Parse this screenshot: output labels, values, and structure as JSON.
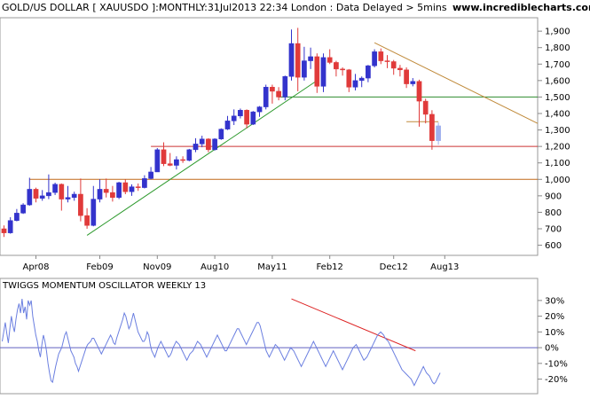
{
  "header": {
    "title": "GOLD/US DOLLAR [ XAUUSDO ]:MONTHLY:31Jul2013 22:34 London : Data Delayed > 5mins",
    "site": "www.incrediblecharts.com"
  },
  "oscillator": {
    "title": "TWIGGS MOMENTUM OSCILLATOR WEEKLY 13"
  },
  "colors": {
    "up": "#3333cc",
    "down": "#e03a3a",
    "current": "#9fb0ee",
    "osc_line": "#6b7fe0",
    "support": "#cc3333",
    "support_1000": "#c06a1a",
    "trend_up": "#2e9a2e",
    "line_1500": "#2e8b2e",
    "trend_down_price": "#c08a3a",
    "trend_down_osc": "#dd2222",
    "grid": "#bbbbbb",
    "zero_line": "#6060c0"
  },
  "chart_data": [
    {
      "type": "candlestick",
      "title": "GOLD/US DOLLAR [ XAUUSDO ]:MONTHLY:31Jul2013 22:34 London : Data Delayed > 5mins",
      "xlabel": "",
      "ylabel": "",
      "x_ticks": [
        "Apr08",
        "Feb09",
        "Nov09",
        "Aug10",
        "May11",
        "Feb12",
        "Dec12",
        "Aug13"
      ],
      "y_ticks": [
        "600",
        "700",
        "800",
        "900",
        "1,000",
        "1,100",
        "1,200",
        "1,300",
        "1,400",
        "1,500",
        "1,600",
        "1,700",
        "1,800",
        "1,900"
      ],
      "ylim": [
        560,
        1960
      ],
      "x_start": "Nov 2007",
      "candles": [
        {
          "m": "Nov07",
          "o": 700,
          "h": 720,
          "l": 650,
          "c": 675
        },
        {
          "m": "Dec07",
          "o": 675,
          "h": 770,
          "l": 670,
          "c": 750
        },
        {
          "m": "Jan08",
          "o": 750,
          "h": 820,
          "l": 745,
          "c": 795
        },
        {
          "m": "Feb08",
          "o": 795,
          "h": 855,
          "l": 790,
          "c": 845
        },
        {
          "m": "Mar08",
          "o": 845,
          "h": 1010,
          "l": 840,
          "c": 940
        },
        {
          "m": "Apr08",
          "o": 940,
          "h": 950,
          "l": 860,
          "c": 885
        },
        {
          "m": "May08",
          "o": 885,
          "h": 935,
          "l": 870,
          "c": 900
        },
        {
          "m": "Jun08",
          "o": 900,
          "h": 1030,
          "l": 880,
          "c": 920
        },
        {
          "m": "Jul08",
          "o": 920,
          "h": 980,
          "l": 905,
          "c": 970
        },
        {
          "m": "Aug08",
          "o": 970,
          "h": 975,
          "l": 810,
          "c": 880
        },
        {
          "m": "Sep08",
          "o": 880,
          "h": 960,
          "l": 860,
          "c": 890
        },
        {
          "m": "Oct08",
          "o": 890,
          "h": 925,
          "l": 870,
          "c": 910
        },
        {
          "m": "Nov08",
          "o": 910,
          "h": 1005,
          "l": 745,
          "c": 780
        },
        {
          "m": "Dec08",
          "o": 780,
          "h": 825,
          "l": 700,
          "c": 720
        },
        {
          "m": "Jan09",
          "o": 720,
          "h": 960,
          "l": 715,
          "c": 880
        },
        {
          "m": "Feb09",
          "o": 880,
          "h": 1000,
          "l": 860,
          "c": 940
        },
        {
          "m": "Mar09",
          "o": 940,
          "h": 1005,
          "l": 890,
          "c": 920
        },
        {
          "m": "Apr09",
          "o": 920,
          "h": 960,
          "l": 865,
          "c": 890
        },
        {
          "m": "May09",
          "o": 890,
          "h": 985,
          "l": 880,
          "c": 980
        },
        {
          "m": "Jun09",
          "o": 980,
          "h": 1000,
          "l": 910,
          "c": 925
        },
        {
          "m": "Jul09",
          "o": 925,
          "h": 970,
          "l": 900,
          "c": 955
        },
        {
          "m": "Aug09",
          "o": 955,
          "h": 975,
          "l": 930,
          "c": 950
        },
        {
          "m": "Sep09",
          "o": 950,
          "h": 1025,
          "l": 945,
          "c": 1005
        },
        {
          "m": "Oct09",
          "o": 1005,
          "h": 1075,
          "l": 1000,
          "c": 1045
        },
        {
          "m": "Nov09",
          "o": 1045,
          "h": 1190,
          "l": 1045,
          "c": 1180
        },
        {
          "m": "Dec09",
          "o": 1180,
          "h": 1225,
          "l": 1080,
          "c": 1095
        },
        {
          "m": "Jan10",
          "o": 1095,
          "h": 1160,
          "l": 1080,
          "c": 1085
        },
        {
          "m": "Feb10",
          "o": 1085,
          "h": 1140,
          "l": 1060,
          "c": 1120
        },
        {
          "m": "Mar10",
          "o": 1120,
          "h": 1140,
          "l": 1100,
          "c": 1115
        },
        {
          "m": "Apr10",
          "o": 1115,
          "h": 1185,
          "l": 1110,
          "c": 1180
        },
        {
          "m": "May10",
          "o": 1180,
          "h": 1250,
          "l": 1165,
          "c": 1215
        },
        {
          "m": "Jun10",
          "o": 1215,
          "h": 1265,
          "l": 1195,
          "c": 1245
        },
        {
          "m": "Jul10",
          "o": 1245,
          "h": 1250,
          "l": 1165,
          "c": 1180
        },
        {
          "m": "Aug10",
          "o": 1180,
          "h": 1250,
          "l": 1175,
          "c": 1245
        },
        {
          "m": "Sep10",
          "o": 1245,
          "h": 1310,
          "l": 1240,
          "c": 1305
        },
        {
          "m": "Oct10",
          "o": 1305,
          "h": 1385,
          "l": 1300,
          "c": 1355
        },
        {
          "m": "Nov10",
          "o": 1355,
          "h": 1425,
          "l": 1330,
          "c": 1385
        },
        {
          "m": "Dec10",
          "o": 1385,
          "h": 1430,
          "l": 1370,
          "c": 1420
        },
        {
          "m": "Jan11",
          "o": 1420,
          "h": 1425,
          "l": 1310,
          "c": 1335
        },
        {
          "m": "Feb11",
          "o": 1335,
          "h": 1415,
          "l": 1330,
          "c": 1410
        },
        {
          "m": "Mar11",
          "o": 1410,
          "h": 1445,
          "l": 1380,
          "c": 1440
        },
        {
          "m": "Apr11",
          "o": 1440,
          "h": 1575,
          "l": 1425,
          "c": 1560
        },
        {
          "m": "May11",
          "o": 1560,
          "h": 1575,
          "l": 1460,
          "c": 1535
        },
        {
          "m": "Jun11",
          "o": 1535,
          "h": 1560,
          "l": 1480,
          "c": 1500
        },
        {
          "m": "Jul11",
          "o": 1500,
          "h": 1630,
          "l": 1480,
          "c": 1625
        },
        {
          "m": "Aug11",
          "o": 1625,
          "h": 1910,
          "l": 1600,
          "c": 1825
        },
        {
          "m": "Sep11",
          "o": 1825,
          "h": 1920,
          "l": 1535,
          "c": 1620
        },
        {
          "m": "Oct11",
          "o": 1620,
          "h": 1805,
          "l": 1600,
          "c": 1720
        },
        {
          "m": "Nov11",
          "o": 1720,
          "h": 1800,
          "l": 1670,
          "c": 1745
        },
        {
          "m": "Dec11",
          "o": 1745,
          "h": 1765,
          "l": 1525,
          "c": 1565
        },
        {
          "m": "Jan12",
          "o": 1565,
          "h": 1765,
          "l": 1530,
          "c": 1740
        },
        {
          "m": "Feb12",
          "o": 1740,
          "h": 1790,
          "l": 1700,
          "c": 1710
        },
        {
          "m": "Mar12",
          "o": 1710,
          "h": 1720,
          "l": 1625,
          "c": 1670
        },
        {
          "m": "Apr12",
          "o": 1670,
          "h": 1680,
          "l": 1630,
          "c": 1665
        },
        {
          "m": "May12",
          "o": 1665,
          "h": 1670,
          "l": 1530,
          "c": 1560
        },
        {
          "m": "Jun12",
          "o": 1560,
          "h": 1640,
          "l": 1540,
          "c": 1600
        },
        {
          "m": "Jul12",
          "o": 1600,
          "h": 1625,
          "l": 1560,
          "c": 1615
        },
        {
          "m": "Aug12",
          "o": 1615,
          "h": 1695,
          "l": 1590,
          "c": 1690
        },
        {
          "m": "Sep12",
          "o": 1690,
          "h": 1790,
          "l": 1680,
          "c": 1775
        },
        {
          "m": "Oct12",
          "o": 1775,
          "h": 1795,
          "l": 1700,
          "c": 1720
        },
        {
          "m": "Nov12",
          "o": 1720,
          "h": 1755,
          "l": 1675,
          "c": 1715
        },
        {
          "m": "Dec12",
          "o": 1715,
          "h": 1725,
          "l": 1635,
          "c": 1675
        },
        {
          "m": "Jan13",
          "o": 1675,
          "h": 1695,
          "l": 1625,
          "c": 1665
        },
        {
          "m": "Feb13",
          "o": 1665,
          "h": 1680,
          "l": 1555,
          "c": 1580
        },
        {
          "m": "Mar13",
          "o": 1580,
          "h": 1615,
          "l": 1565,
          "c": 1595
        },
        {
          "m": "Apr13",
          "o": 1595,
          "h": 1605,
          "l": 1320,
          "c": 1475
        },
        {
          "m": "May13",
          "o": 1475,
          "h": 1490,
          "l": 1340,
          "c": 1395
        },
        {
          "m": "Jun13",
          "o": 1395,
          "h": 1420,
          "l": 1180,
          "c": 1235
        },
        {
          "m": "Jul13",
          "o": 1235,
          "h": 1345,
          "l": 1210,
          "c": 1325
        }
      ],
      "lines": [
        {
          "name": "support-1000",
          "from": [
            "Mar08",
            1000
          ],
          "to": [
            "end",
            1000
          ]
        },
        {
          "name": "support-1200",
          "from": [
            "Oct09",
            1200
          ],
          "to": [
            "end",
            1200
          ]
        },
        {
          "name": "line-1500",
          "from": [
            "Jun11",
            1500
          ],
          "to": [
            "end",
            1500
          ]
        },
        {
          "name": "trend-up",
          "from": [
            "Dec08",
            660
          ],
          "to": [
            "Dec11",
            1600
          ]
        },
        {
          "name": "trend-down-price",
          "from": [
            "Sep12",
            1830
          ],
          "to": [
            "end",
            1340
          ]
        },
        {
          "name": "short-1350",
          "from": [
            "Feb13",
            1350
          ],
          "to": [
            "Jul13",
            1350
          ]
        }
      ]
    },
    {
      "type": "line",
      "title": "TWIGGS MOMENTUM OSCILLATOR WEEKLY 13",
      "y_ticks": [
        "30%",
        "20%",
        "10%",
        "0%",
        "-10%",
        "-20%"
      ],
      "ylim": [
        -27,
        35
      ],
      "x_start": "Nov 2007",
      "x_end": "Jul 2013",
      "values": [
        4,
        10,
        16,
        9,
        3,
        12,
        20,
        14,
        10,
        18,
        24,
        28,
        22,
        31,
        22,
        26,
        18,
        30,
        27,
        30,
        20,
        14,
        8,
        4,
        -2,
        -6,
        2,
        8,
        4,
        -2,
        -10,
        -16,
        -21,
        -22,
        -17,
        -12,
        -8,
        -4,
        -2,
        0,
        4,
        8,
        10,
        6,
        2,
        -2,
        -4,
        -6,
        -10,
        -12,
        -15,
        -12,
        -9,
        -6,
        -3,
        0,
        2,
        3,
        4,
        6,
        6,
        4,
        2,
        0,
        -2,
        -4,
        -2,
        0,
        2,
        4,
        6,
        8,
        6,
        3,
        2,
        6,
        9,
        12,
        15,
        18,
        22,
        20,
        16,
        12,
        14,
        18,
        22,
        18,
        14,
        10,
        8,
        6,
        4,
        4,
        6,
        10,
        8,
        2,
        -2,
        -4,
        -6,
        -3,
        0,
        2,
        4,
        2,
        0,
        -2,
        -4,
        -6,
        -5,
        -3,
        0,
        2,
        4,
        3,
        2,
        0,
        -2,
        -4,
        -6,
        -8,
        -6,
        -4,
        -3,
        -2,
        0,
        2,
        4,
        3,
        2,
        0,
        -2,
        -4,
        -6,
        -4,
        -2,
        0,
        2,
        4,
        6,
        8,
        6,
        4,
        2,
        0,
        -2,
        -2,
        0,
        2,
        4,
        6,
        8,
        10,
        12,
        12,
        10,
        8,
        6,
        4,
        2,
        4,
        6,
        8,
        10,
        12,
        14,
        16,
        16,
        14,
        10,
        6,
        2,
        -2,
        -4,
        -6,
        -4,
        -2,
        0,
        2,
        1,
        0,
        -2,
        -4,
        -6,
        -8,
        -6,
        -4,
        -2,
        0,
        -1,
        -2,
        -4,
        -6,
        -8,
        -10,
        -12,
        -10,
        -8,
        -6,
        -4,
        -2,
        0,
        2,
        4,
        2,
        0,
        -2,
        -4,
        -6,
        -8,
        -10,
        -12,
        -10,
        -8,
        -6,
        -4,
        -2,
        -4,
        -6,
        -8,
        -10,
        -12,
        -14,
        -12,
        -10,
        -8,
        -6,
        -4,
        -2,
        0,
        1,
        2,
        0,
        -2,
        -4,
        -6,
        -8,
        -7,
        -6,
        -4,
        -2,
        0,
        2,
        4,
        6,
        8,
        9,
        10,
        9,
        8,
        6,
        5,
        4,
        2,
        0,
        -2,
        -4,
        -6,
        -8,
        -10,
        -12,
        -14,
        -15,
        -16,
        -17,
        -18,
        -19,
        -20,
        -22,
        -24,
        -22,
        -20,
        -18,
        -16,
        -14,
        -12,
        -14,
        -16,
        -17,
        -18,
        -20,
        -22,
        -23,
        -22,
        -20,
        -18,
        -16
      ]
    }
  ]
}
